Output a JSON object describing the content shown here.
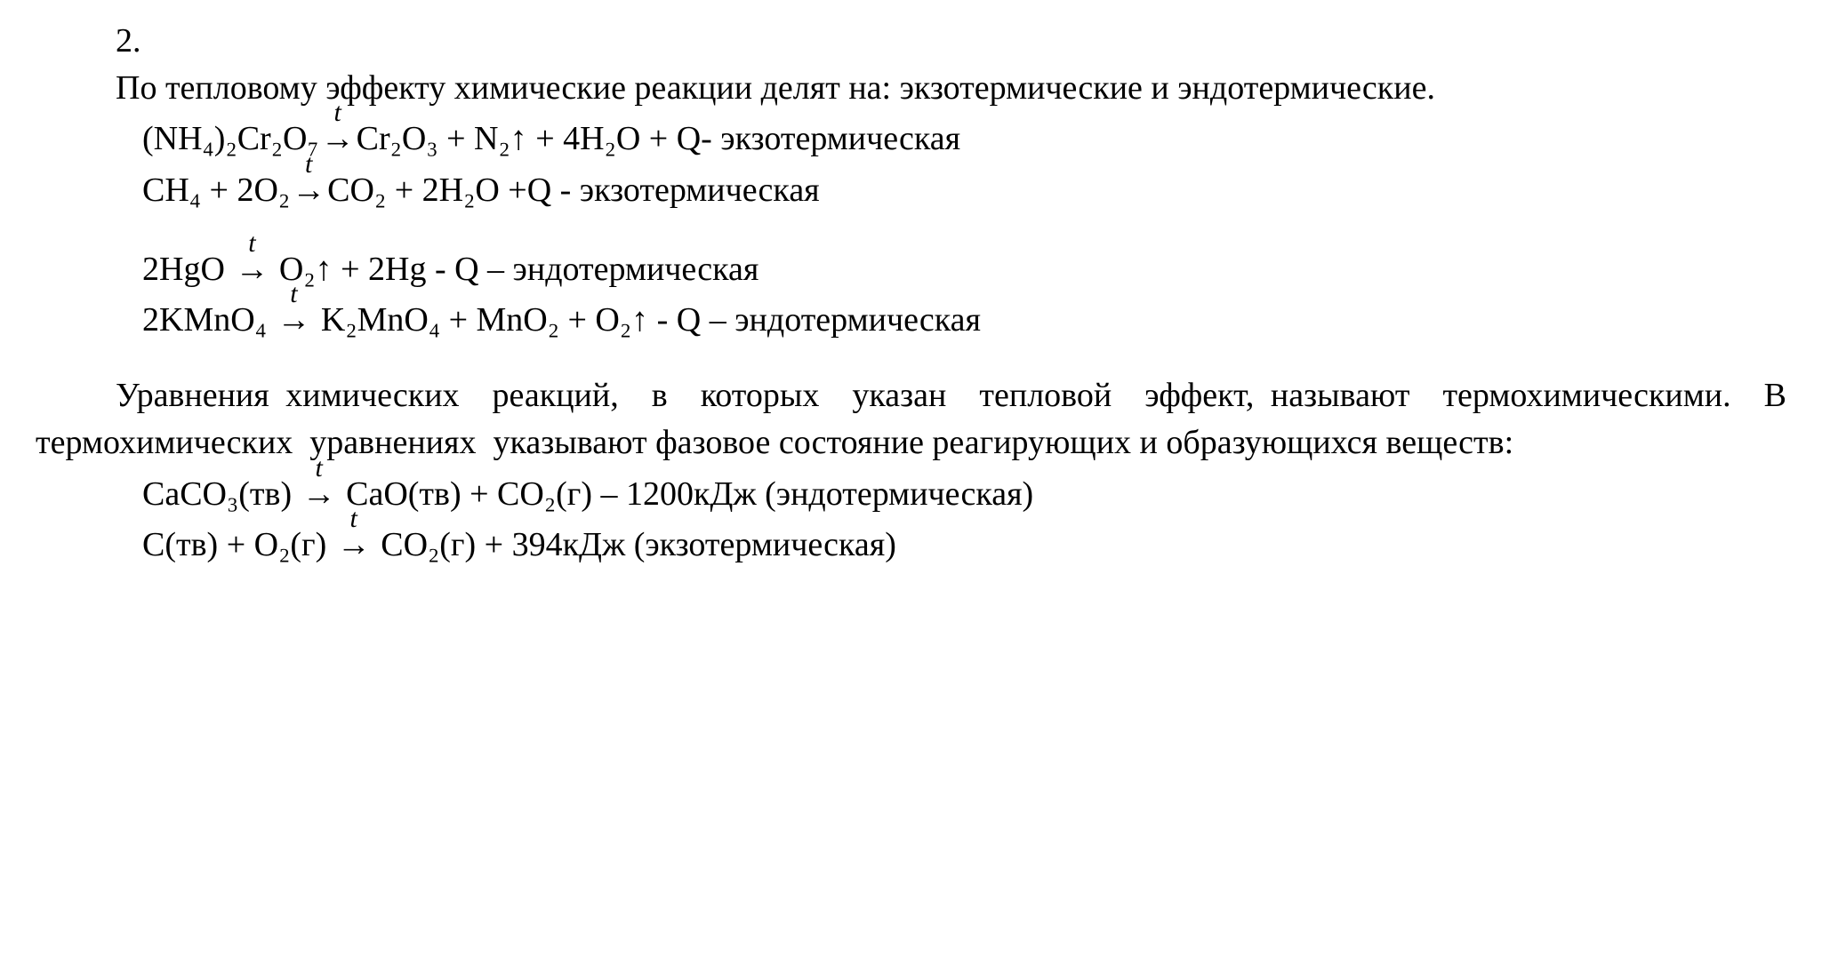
{
  "colors": {
    "background": "#ffffff",
    "text": "#000000"
  },
  "typography": {
    "font_family": "Times New Roman",
    "base_size_pt": 28,
    "arrow_over_label_size_pt": 22
  },
  "header_number": "2.",
  "intro": "По тепловому эффекту химические реакции делят на: экзотермические и эндотермические.",
  "arrow_label": "t",
  "arrow": "→",
  "reactions": {
    "eq1": {
      "left": "(NH₄)₂Cr₂O₇",
      "right": "Cr₂O₃ + N₂↑ + 4H₂O + Q- экзотермическая"
    },
    "eq2": {
      "left": "CH₄ + 2O₂",
      "right": "CO₂ + 2H₂O +Q - экзотермическая"
    },
    "eq3": {
      "left": "2HgO ",
      "right": " O₂↑ + 2Hg - Q – эндотермическая"
    },
    "eq4": {
      "left": "2KMnO₄ ",
      "right": " K₂MnO₄ + MnO₂ + O₂↑ - Q  – эндотермическая"
    }
  },
  "thermo_text": "Уравнения химических  реакций,  в  которых  указан  тепловой  эффект, называют  термохимическими.  В  термохимических  уравнениях  указывают фазовое состояние реагирующих и образующихся веществ:",
  "thermo_reactions": {
    "eq5": {
      "left": "CaCO₃(тв) ",
      "right": " CaO(тв) + CO₂(г) – 1200кДж (эндотермическая)"
    },
    "eq6": {
      "left": "C(тв) + O₂(г) ",
      "right": " CO₂(г) + 394кДж (экзотермическая)"
    }
  }
}
